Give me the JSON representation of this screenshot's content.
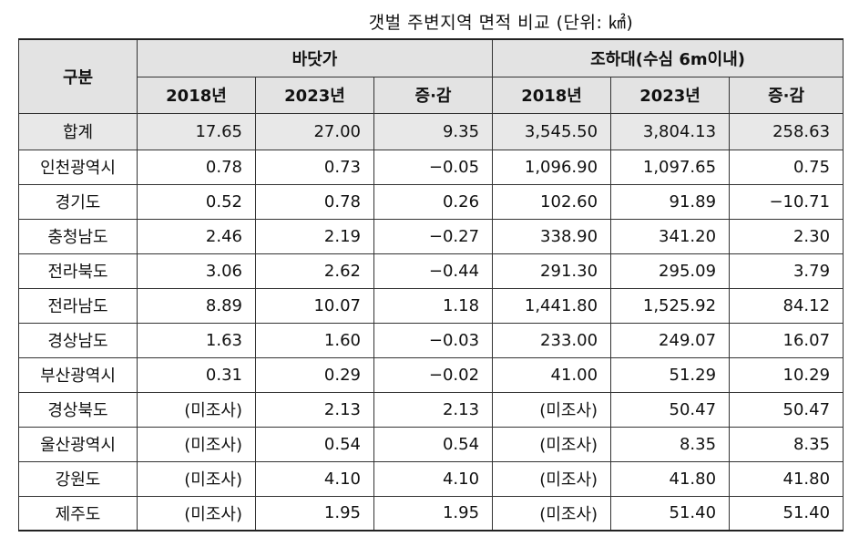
{
  "title": "갯벌 주변지역 면적 비교 (단위: ㎢)",
  "table": {
    "corner_header": "구분",
    "group_headers": [
      "바닷가",
      "조하대(수심 6m이내)"
    ],
    "sub_headers": [
      "2018년",
      "2023년",
      "증·감",
      "2018년",
      "2023년",
      "증·감"
    ],
    "total_row": {
      "label": "합계",
      "values": [
        "17.65",
        "27.00",
        "9.35",
        "3,545.50",
        "3,804.13",
        "258.63"
      ]
    },
    "rows": [
      {
        "label": "인천광역시",
        "values": [
          "0.78",
          "0.73",
          "−0.05",
          "1,096.90",
          "1,097.65",
          "0.75"
        ]
      },
      {
        "label": "경기도",
        "values": [
          "0.52",
          "0.78",
          "0.26",
          "102.60",
          "91.89",
          "−10.71"
        ]
      },
      {
        "label": "충청남도",
        "values": [
          "2.46",
          "2.19",
          "−0.27",
          "338.90",
          "341.20",
          "2.30"
        ]
      },
      {
        "label": "전라북도",
        "values": [
          "3.06",
          "2.62",
          "−0.44",
          "291.30",
          "295.09",
          "3.79"
        ]
      },
      {
        "label": "전라남도",
        "values": [
          "8.89",
          "10.07",
          "1.18",
          "1,441.80",
          "1,525.92",
          "84.12"
        ]
      },
      {
        "label": "경상남도",
        "values": [
          "1.63",
          "1.60",
          "−0.03",
          "233.00",
          "249.07",
          "16.07"
        ]
      },
      {
        "label": "부산광역시",
        "values": [
          "0.31",
          "0.29",
          "−0.02",
          "41.00",
          "51.29",
          "10.29"
        ]
      },
      {
        "label": "경상북도",
        "values": [
          "(미조사)",
          "2.13",
          "2.13",
          "(미조사)",
          "50.47",
          "50.47"
        ]
      },
      {
        "label": "울산광역시",
        "values": [
          "(미조사)",
          "0.54",
          "0.54",
          "(미조사)",
          "8.35",
          "8.35"
        ]
      },
      {
        "label": "강원도",
        "values": [
          "(미조사)",
          "4.10",
          "4.10",
          "(미조사)",
          "41.80",
          "41.80"
        ]
      },
      {
        "label": "제주도",
        "values": [
          "(미조사)",
          "1.95",
          "1.95",
          "(미조사)",
          "51.40",
          "51.40"
        ]
      }
    ]
  }
}
